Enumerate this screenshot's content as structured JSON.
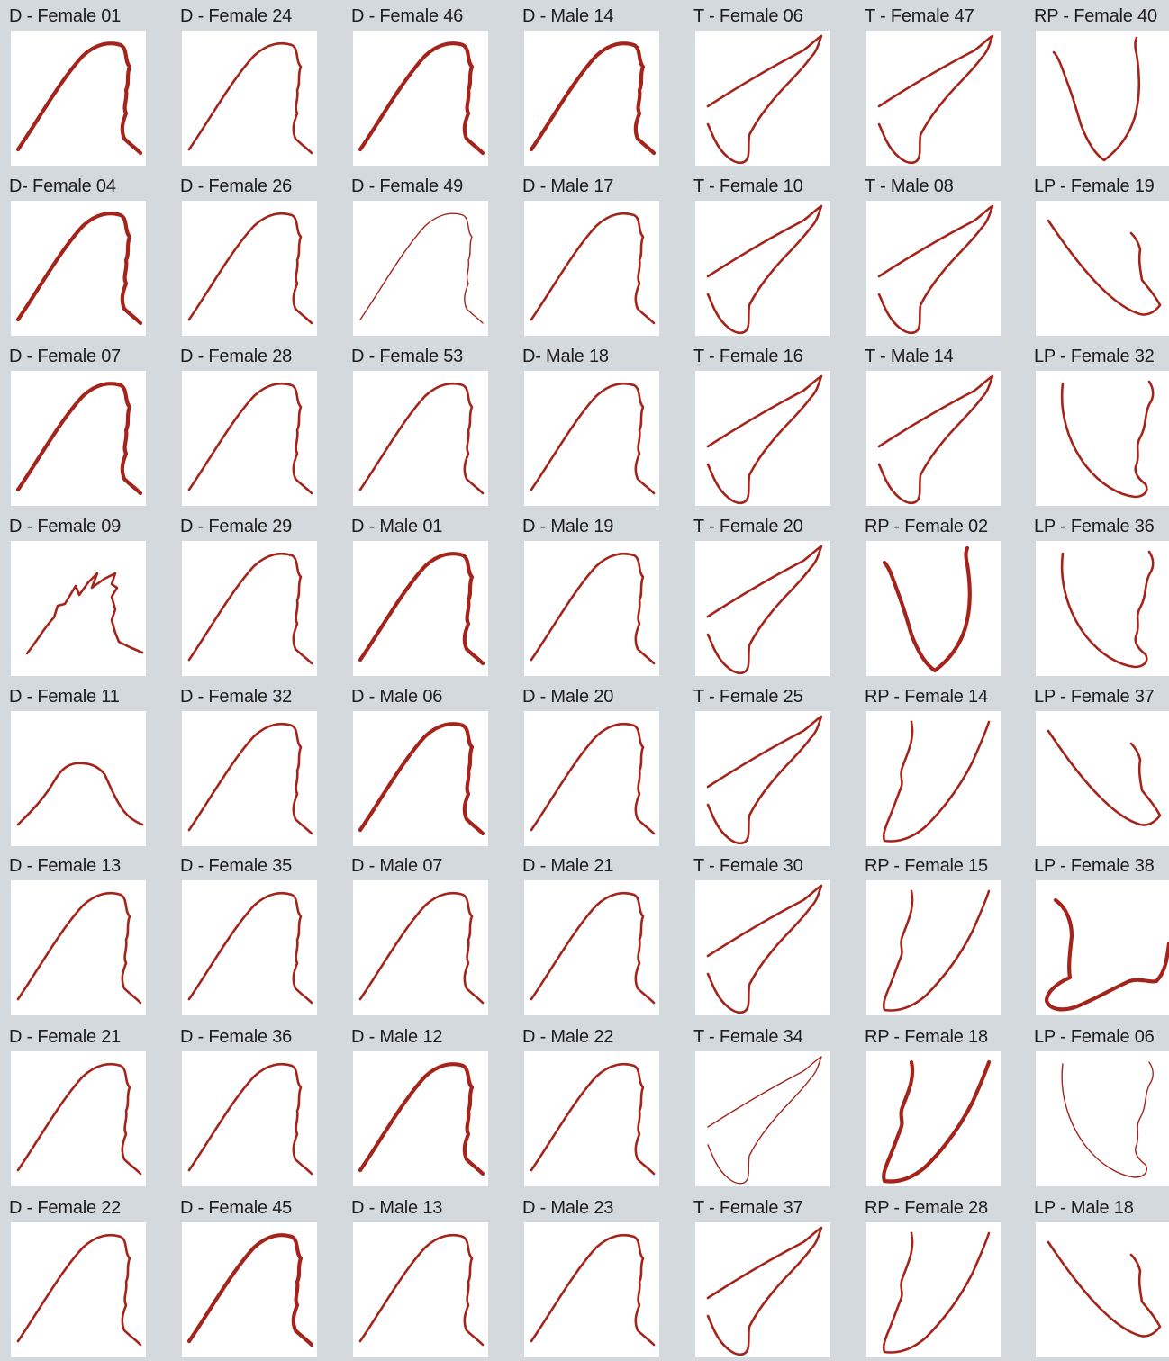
{
  "stroke_color": "#a4241b",
  "background_color": "#d4d9dd",
  "tile_color": "#ffffff",
  "columns": [
    {
      "id": "col-d1",
      "shape": "dorsal",
      "items": [
        {
          "label": "D - Female 01",
          "weight": "bold"
        },
        {
          "label": "D- Female 04",
          "weight": "bold"
        },
        {
          "label": "D - Female 07",
          "weight": "bold"
        },
        {
          "label": "D - Female 09",
          "weight": "regular",
          "variant": "spiky"
        },
        {
          "label": "D - Female 11",
          "weight": "regular",
          "variant": "low"
        },
        {
          "label": "D - Female 13",
          "weight": "regular"
        },
        {
          "label": "D - Female 21",
          "weight": "regular"
        },
        {
          "label": "D - Female 22",
          "weight": "regular"
        }
      ]
    },
    {
      "id": "col-d2",
      "shape": "dorsal",
      "items": [
        {
          "label": "D - Female 24",
          "weight": "regular"
        },
        {
          "label": "D - Female 26",
          "weight": "regular"
        },
        {
          "label": "D - Female 28",
          "weight": "regular"
        },
        {
          "label": "D - Female 29",
          "weight": "regular"
        },
        {
          "label": "D - Female 32",
          "weight": "regular"
        },
        {
          "label": "D - Female 35",
          "weight": "regular"
        },
        {
          "label": "D - Female 36",
          "weight": "regular"
        },
        {
          "label": "D - Female 45",
          "weight": "bold"
        }
      ]
    },
    {
      "id": "col-d3",
      "shape": "dorsal",
      "items": [
        {
          "label": "D - Female 46",
          "weight": "bold"
        },
        {
          "label": "D - Female 49",
          "weight": "thin"
        },
        {
          "label": "D - Female 53",
          "weight": "regular"
        },
        {
          "label": "D - Male 01",
          "weight": "bold"
        },
        {
          "label": "D - Male 06",
          "weight": "bold"
        },
        {
          "label": "D - Male 07",
          "weight": "regular"
        },
        {
          "label": "D - Male 12",
          "weight": "bold"
        },
        {
          "label": "D - Male 13",
          "weight": "regular"
        }
      ]
    },
    {
      "id": "col-d4",
      "shape": "dorsal",
      "items": [
        {
          "label": "D - Male 14",
          "weight": "bold"
        },
        {
          "label": "D - Male 17",
          "weight": "regular"
        },
        {
          "label": "D- Male 18",
          "weight": "regular"
        },
        {
          "label": "D - Male 19",
          "weight": "regular"
        },
        {
          "label": "D - Male 20",
          "weight": "regular"
        },
        {
          "label": "D - Male 21",
          "weight": "regular"
        },
        {
          "label": "D - Male 22",
          "weight": "regular"
        },
        {
          "label": "D - Male 23",
          "weight": "regular"
        }
      ]
    },
    {
      "id": "col-t1",
      "shape": "tail",
      "items": [
        {
          "label": "T - Female 06",
          "weight": "regular"
        },
        {
          "label": "T - Female 10",
          "weight": "regular"
        },
        {
          "label": "T - Female 16",
          "weight": "regular"
        },
        {
          "label": "T - Female 20",
          "weight": "regular"
        },
        {
          "label": "T - Female 25",
          "weight": "regular"
        },
        {
          "label": "T - Female 30",
          "weight": "regular"
        },
        {
          "label": "T - Female 34",
          "weight": "thin"
        },
        {
          "label": "T - Female 37",
          "weight": "regular"
        }
      ]
    },
    {
      "id": "col-mix1",
      "shape": "mixed",
      "items": [
        {
          "label": "T - Female 47",
          "shape": "tail",
          "weight": "regular"
        },
        {
          "label": "T - Male 08",
          "shape": "tail",
          "weight": "regular"
        },
        {
          "label": "T - Male 14",
          "shape": "tail",
          "weight": "regular"
        },
        {
          "label": "RP - Female 02",
          "shape": "rp-bowl",
          "weight": "bold"
        },
        {
          "label": "RP - Female 14",
          "shape": "rp-fin",
          "weight": "regular"
        },
        {
          "label": "RP - Female 15",
          "shape": "rp-fin",
          "weight": "regular"
        },
        {
          "label": "RP - Female 18",
          "shape": "rp-fin",
          "weight": "bold"
        },
        {
          "label": "RP - Female 28",
          "shape": "rp-fin",
          "weight": "regular"
        }
      ]
    },
    {
      "id": "col-mix2",
      "shape": "mixed",
      "items": [
        {
          "label": "RP - Female 40",
          "shape": "rp-bowl",
          "weight": "regular"
        },
        {
          "label": "LP - Female 19",
          "shape": "lp-fin",
          "weight": "regular"
        },
        {
          "label": "LP - Female 32",
          "shape": "lp-bowl",
          "weight": "regular"
        },
        {
          "label": "LP - Female 36",
          "shape": "lp-bowl",
          "weight": "regular"
        },
        {
          "label": "LP - Female 37",
          "shape": "lp-fin",
          "weight": "regular"
        },
        {
          "label": "LP - Female 38",
          "shape": "lp-loop",
          "weight": "bold"
        },
        {
          "label": "LP - Female 06",
          "shape": "lp-bowl",
          "weight": "thin"
        },
        {
          "label": "LP - Male 18",
          "shape": "lp-fin",
          "weight": "regular"
        }
      ]
    }
  ]
}
